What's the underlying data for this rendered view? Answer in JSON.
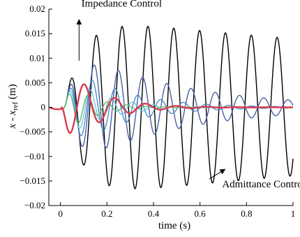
{
  "chart_data": {
    "type": "line",
    "xlabel": "time (s)",
    "ylabel_main": "x - x",
    "ylabel_sub": "ref",
    "ylabel_unit": " (m)",
    "xlim": [
      -0.05,
      1.0
    ],
    "ylim": [
      -0.02,
      0.02
    ],
    "xticks": [
      {
        "value": 0,
        "label": "0"
      },
      {
        "value": 0.2,
        "label": "0.2"
      },
      {
        "value": 0.4,
        "label": "0.4"
      },
      {
        "value": 0.6,
        "label": "0.6"
      },
      {
        "value": 0.8,
        "label": "0.8"
      },
      {
        "value": 1.0,
        "label": "1"
      }
    ],
    "yticks": [
      {
        "value": -0.02,
        "label": "−0.02"
      },
      {
        "value": -0.015,
        "label": "−0.015"
      },
      {
        "value": -0.01,
        "label": "−0.01"
      },
      {
        "value": -0.005,
        "label": "−0.005"
      },
      {
        "value": 0,
        "label": "0"
      },
      {
        "value": 0.005,
        "label": "0.005"
      },
      {
        "value": 0.01,
        "label": "0.01"
      },
      {
        "value": 0.015,
        "label": "0.015"
      },
      {
        "value": 0.02,
        "label": "0.02"
      }
    ],
    "grid": false,
    "annotations": [
      {
        "text": "Impedance Control",
        "x": 0.09,
        "y": 0.0205,
        "arrow_from": [
          0.08,
          0.0095
        ],
        "arrow_to": [
          0.08,
          0.0177
        ]
      },
      {
        "text": "Admittance Control",
        "x": 0.695,
        "y": -0.0163,
        "arrow_from": [
          0.64,
          -0.0146
        ],
        "arrow_to": [
          0.705,
          -0.0127
        ]
      }
    ],
    "series": [
      {
        "color": "#000000",
        "width": 1.4,
        "amp": 0.0185,
        "freq": 9.0,
        "phase": 0.0,
        "t_start": 0.015,
        "tau_rise": 0.08,
        "tau_decay": 3.5
      },
      {
        "color": "#4a5fa8",
        "width": 1.4,
        "amp": 0.013,
        "freq": 9.6,
        "phase": 0.0,
        "t_start": 0.015,
        "tau_rise": 0.06,
        "tau_decay": 0.45
      },
      {
        "color": "#3f86c6",
        "width": 1.3,
        "amp": 0.0105,
        "freq": 10.2,
        "phase": 0.0,
        "t_start": 0.015,
        "tau_rise": 0.05,
        "tau_decay": 0.22
      },
      {
        "color": "#66c3e0",
        "width": 1.3,
        "amp": 0.0085,
        "freq": 11.0,
        "phase": 0.0,
        "t_start": 0.015,
        "tau_rise": 0.04,
        "tau_decay": 0.14
      },
      {
        "color": "#5cb35c",
        "width": 1.3,
        "amp": 0.0072,
        "freq": 12.0,
        "phase": 0.0,
        "t_start": 0.015,
        "tau_rise": 0.035,
        "tau_decay": 0.1
      },
      {
        "color": "#d83a4f",
        "width": 2.4,
        "amp": 0.0098,
        "freq": 7.6,
        "phase": 3.1416,
        "t_start": 0.005,
        "tau_rise": 0.03,
        "tau_decay": 0.14
      }
    ]
  }
}
